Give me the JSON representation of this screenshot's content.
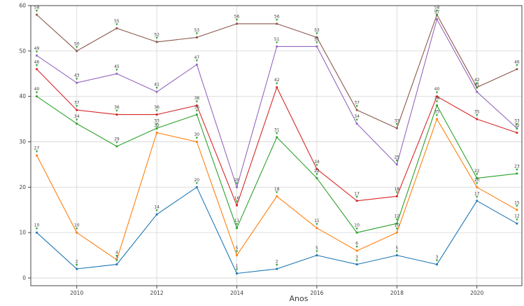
{
  "chart_data": {
    "type": "line",
    "title": "",
    "xlabel": "Anos",
    "ylabel": "",
    "x": [
      2009,
      2010,
      2011,
      2012,
      2013,
      2014,
      2015,
      2016,
      2017,
      2018,
      2019,
      2020,
      2021
    ],
    "x_ticks": [
      2010,
      2012,
      2014,
      2016,
      2018,
      2020
    ],
    "y_ticks": [
      0,
      10,
      20,
      30,
      40,
      50,
      60
    ],
    "ylim": [
      -2,
      60
    ],
    "grid": true,
    "legend": false,
    "point_labels": true,
    "series": [
      {
        "name": "blue",
        "color": "#1f77b4",
        "values": [
          10,
          2,
          3,
          14,
          20,
          1,
          2,
          5,
          3,
          5,
          3,
          17,
          12
        ]
      },
      {
        "name": "orange",
        "color": "#ff7f0e",
        "values": [
          27,
          10,
          4,
          32,
          30,
          5,
          18,
          11,
          6,
          10,
          35,
          20,
          15
        ]
      },
      {
        "name": "green",
        "color": "#2ca02c",
        "values": [
          40,
          34,
          29,
          33,
          36,
          11,
          31,
          22,
          10,
          12,
          38,
          22,
          23
        ]
      },
      {
        "name": "red",
        "color": "#d62728",
        "values": [
          46,
          37,
          36,
          36,
          38,
          16,
          42,
          24,
          17,
          18,
          40,
          35,
          32
        ]
      },
      {
        "name": "purple",
        "color": "#9467bd",
        "values": [
          49,
          43,
          45,
          41,
          47,
          20,
          51,
          51,
          34,
          25,
          57,
          41,
          33
        ]
      },
      {
        "name": "brown",
        "color": "#8c564b",
        "values": [
          58,
          50,
          55,
          52,
          53,
          56,
          56,
          53,
          37,
          33,
          58,
          42,
          46
        ]
      }
    ],
    "colors": {
      "grid": "#d9d9d9",
      "spine": "#333333",
      "tick_label": "#3c3c3c",
      "point_label": "#404040",
      "label_caret": "#2ca02c",
      "background": "#ffffff"
    }
  }
}
